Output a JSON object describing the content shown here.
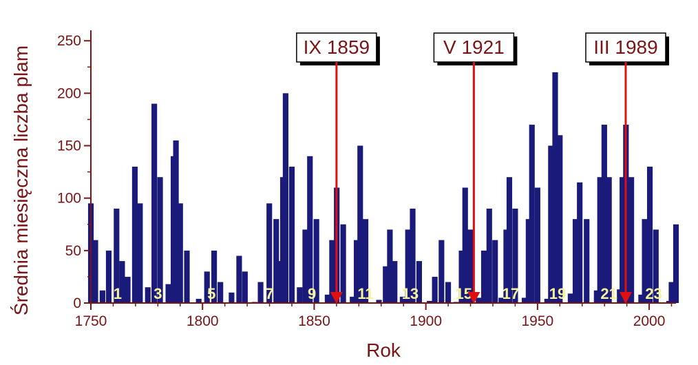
{
  "chart_data": {
    "type": "bar",
    "title": "",
    "xlabel": "Rok",
    "ylabel": "Średnia miesięczna liczba plam",
    "xlim": [
      1750,
      2012
    ],
    "ylim": [
      0,
      260
    ],
    "x_ticks": [
      1750,
      1800,
      1850,
      1900,
      1950,
      2000
    ],
    "y_ticks": [
      0,
      50,
      100,
      150,
      200,
      250
    ],
    "colors": {
      "bars": "#1a1a7a",
      "axis": "#7b1515",
      "arrows": "#e01010",
      "cycle_labels": "#f4f29a"
    },
    "series": [
      {
        "x": [
          1750.0,
          1752.0,
          1755.2,
          1758.0,
          1761.5,
          1764.0,
          1766.5,
          1769.7,
          1772.0,
          1775.5,
          1778.4,
          1781.0,
          1784.7,
          1787.0,
          1788.1,
          1790.0,
          1793.0,
          1798.3,
          1802.0,
          1805.2,
          1808.0,
          1810.6,
          1813.0,
          1816.4,
          1819.0,
          1823.3,
          1826.0,
          1829.9,
          1833.0,
          1833.8,
          1836.0,
          1837.2,
          1840.0,
          1843.5,
          1846.0,
          1848.1,
          1851.0,
          1856.0,
          1858.0,
          1860.1,
          1863.0,
          1867.2,
          1869.0,
          1870.6,
          1873.0,
          1879.0,
          1882.0,
          1883.9,
          1886.0,
          1889.6,
          1892.0,
          1894.1,
          1897.0,
          1901.7,
          1904.0,
          1907.0,
          1910.0,
          1913.6,
          1916.0,
          1917.6,
          1920.0,
          1923.6,
          1926.0,
          1928.4,
          1931.0,
          1933.8,
          1936.0,
          1937.4,
          1940.0,
          1944.2,
          1946.0,
          1947.5,
          1950.0,
          1954.3,
          1956.0,
          1957.9,
          1960.0,
          1964.8,
          1967.0,
          1968.9,
          1972.0,
          1976.5,
          1978.0,
          1979.9,
          1982.0,
          1986.8,
          1988.0,
          1989.6,
          1992.0,
          1996.4,
          1998.0,
          2000.3,
          2003.0,
          2008.9,
          2010.0,
          2012.0
        ],
        "values": [
          95,
          60,
          12,
          50,
          90,
          40,
          25,
          130,
          95,
          15,
          190,
          120,
          18,
          140,
          155,
          95,
          50,
          4,
          30,
          50,
          20,
          0,
          10,
          45,
          30,
          1,
          20,
          95,
          80,
          40,
          120,
          200,
          130,
          15,
          70,
          140,
          80,
          8,
          60,
          110,
          75,
          6,
          60,
          150,
          80,
          3,
          35,
          70,
          40,
          6,
          70,
          90,
          40,
          2,
          25,
          60,
          20,
          1,
          50,
          110,
          70,
          5,
          50,
          90,
          60,
          5,
          70,
          120,
          90,
          5,
          80,
          170,
          110,
          4,
          150,
          220,
          160,
          9,
          80,
          115,
          80,
          12,
          120,
          170,
          120,
          13,
          120,
          170,
          120,
          8,
          80,
          130,
          70,
          2,
          20,
          75
        ]
      }
    ],
    "cycle_labels": [
      {
        "label": "1",
        "x": 1762
      },
      {
        "label": "3",
        "x": 1780
      },
      {
        "label": "5",
        "x": 1804
      },
      {
        "label": "7",
        "x": 1830
      },
      {
        "label": "9",
        "x": 1849
      },
      {
        "label": "11",
        "x": 1873
      },
      {
        "label": "13",
        "x": 1893
      },
      {
        "label": "15",
        "x": 1917
      },
      {
        "label": "17",
        "x": 1938
      },
      {
        "label": "19",
        "x": 1959
      },
      {
        "label": "21",
        "x": 1982
      },
      {
        "label": "23",
        "x": 2002
      }
    ],
    "annotations": [
      {
        "label": "IX 1859",
        "x": 1860.0
      },
      {
        "label": "V 1921",
        "x": 1921.5
      },
      {
        "label": "III 1989",
        "x": 1989.5
      }
    ]
  }
}
